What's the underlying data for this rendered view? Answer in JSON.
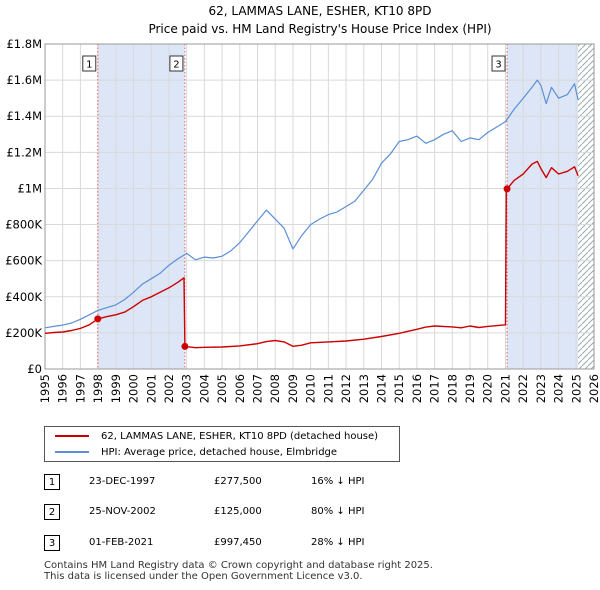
{
  "chart_data": {
    "type": "line",
    "title": "62, LAMMAS LANE, ESHER, KT10 8PD",
    "subtitle": "Price paid vs. HM Land Registry's House Price Index (HPI)",
    "xlim": [
      1995,
      2026
    ],
    "ylim": [
      0,
      1800000
    ],
    "x_ticks": [
      1995,
      1996,
      1997,
      1998,
      1999,
      2000,
      2001,
      2002,
      2003,
      2004,
      2005,
      2006,
      2007,
      2008,
      2009,
      2010,
      2011,
      2012,
      2013,
      2014,
      2015,
      2016,
      2017,
      2018,
      2019,
      2020,
      2021,
      2022,
      2023,
      2024,
      2025,
      2026
    ],
    "y_ticks": [
      {
        "value": 0,
        "label": "£0"
      },
      {
        "value": 200000,
        "label": "£200K"
      },
      {
        "value": 400000,
        "label": "£400K"
      },
      {
        "value": 600000,
        "label": "£600K"
      },
      {
        "value": 800000,
        "label": "£800K"
      },
      {
        "value": 1000000,
        "label": "£1M"
      },
      {
        "value": 1200000,
        "label": "£1.2M"
      },
      {
        "value": 1400000,
        "label": "£1.4M"
      },
      {
        "value": 1600000,
        "label": "£1.6M"
      },
      {
        "value": 1800000,
        "label": "£1.8M"
      }
    ],
    "shaded_periods": [
      [
        1997.98,
        2002.9
      ],
      [
        2021.09,
        2025.1
      ]
    ],
    "hatched_from": 2025.1,
    "series": [
      {
        "name": "62, LAMMAS LANE, ESHER, KT10 8PD (detached house)",
        "color": "#cc0000",
        "points": [
          [
            1995.0,
            198000
          ],
          [
            1995.5,
            202000
          ],
          [
            1996.0,
            205000
          ],
          [
            1996.5,
            213000
          ],
          [
            1997.0,
            225000
          ],
          [
            1997.5,
            245000
          ],
          [
            1997.98,
            277500
          ],
          [
            1998.5,
            290000
          ],
          [
            1999.0,
            300000
          ],
          [
            1999.5,
            315000
          ],
          [
            2000.0,
            345000
          ],
          [
            2000.5,
            380000
          ],
          [
            2001.0,
            400000
          ],
          [
            2001.5,
            425000
          ],
          [
            2002.0,
            450000
          ],
          [
            2002.5,
            480000
          ],
          [
            2002.85,
            505000
          ],
          [
            2002.9,
            125000
          ],
          [
            2003.5,
            118000
          ],
          [
            2004.0,
            120000
          ],
          [
            2005.0,
            122000
          ],
          [
            2006.0,
            128000
          ],
          [
            2007.0,
            140000
          ],
          [
            2007.5,
            152000
          ],
          [
            2008.0,
            158000
          ],
          [
            2008.5,
            150000
          ],
          [
            2009.0,
            126000
          ],
          [
            2009.5,
            132000
          ],
          [
            2010.0,
            145000
          ],
          [
            2011.0,
            150000
          ],
          [
            2012.0,
            155000
          ],
          [
            2013.0,
            165000
          ],
          [
            2014.0,
            180000
          ],
          [
            2015.0,
            198000
          ],
          [
            2016.0,
            220000
          ],
          [
            2016.5,
            232000
          ],
          [
            2017.0,
            238000
          ],
          [
            2018.0,
            233000
          ],
          [
            2018.5,
            228000
          ],
          [
            2019.0,
            238000
          ],
          [
            2019.5,
            230000
          ],
          [
            2020.0,
            236000
          ],
          [
            2021.0,
            245000
          ],
          [
            2021.05,
            1000000
          ],
          [
            2021.09,
            997450
          ],
          [
            2021.5,
            1045000
          ],
          [
            2022.0,
            1080000
          ],
          [
            2022.5,
            1135000
          ],
          [
            2022.8,
            1150000
          ],
          [
            2023.0,
            1110000
          ],
          [
            2023.3,
            1060000
          ],
          [
            2023.6,
            1115000
          ],
          [
            2024.0,
            1080000
          ],
          [
            2024.5,
            1095000
          ],
          [
            2024.9,
            1120000
          ],
          [
            2025.1,
            1070000
          ]
        ]
      },
      {
        "name": "HPI: Average price, detached house, Elmbridge",
        "color": "#5b8fd6",
        "points": [
          [
            1995.0,
            228000
          ],
          [
            1995.5,
            236000
          ],
          [
            1996.0,
            243000
          ],
          [
            1996.5,
            255000
          ],
          [
            1997.0,
            275000
          ],
          [
            1997.5,
            300000
          ],
          [
            1998.0,
            325000
          ],
          [
            1998.5,
            340000
          ],
          [
            1999.0,
            355000
          ],
          [
            1999.5,
            385000
          ],
          [
            2000.0,
            425000
          ],
          [
            2000.5,
            470000
          ],
          [
            2001.0,
            500000
          ],
          [
            2001.5,
            530000
          ],
          [
            2002.0,
            575000
          ],
          [
            2002.5,
            610000
          ],
          [
            2003.0,
            640000
          ],
          [
            2003.5,
            605000
          ],
          [
            2004.0,
            620000
          ],
          [
            2004.5,
            615000
          ],
          [
            2005.0,
            625000
          ],
          [
            2005.5,
            655000
          ],
          [
            2006.0,
            700000
          ],
          [
            2006.5,
            760000
          ],
          [
            2007.0,
            820000
          ],
          [
            2007.5,
            880000
          ],
          [
            2008.0,
            830000
          ],
          [
            2008.5,
            780000
          ],
          [
            2009.0,
            665000
          ],
          [
            2009.5,
            740000
          ],
          [
            2010.0,
            800000
          ],
          [
            2010.5,
            830000
          ],
          [
            2011.0,
            855000
          ],
          [
            2011.5,
            870000
          ],
          [
            2012.0,
            900000
          ],
          [
            2012.5,
            930000
          ],
          [
            2013.0,
            990000
          ],
          [
            2013.5,
            1050000
          ],
          [
            2014.0,
            1140000
          ],
          [
            2014.5,
            1190000
          ],
          [
            2015.0,
            1260000
          ],
          [
            2015.5,
            1270000
          ],
          [
            2016.0,
            1290000
          ],
          [
            2016.5,
            1250000
          ],
          [
            2017.0,
            1270000
          ],
          [
            2017.5,
            1300000
          ],
          [
            2018.0,
            1320000
          ],
          [
            2018.5,
            1260000
          ],
          [
            2019.0,
            1280000
          ],
          [
            2019.5,
            1270000
          ],
          [
            2020.0,
            1310000
          ],
          [
            2020.5,
            1340000
          ],
          [
            2021.0,
            1370000
          ],
          [
            2021.5,
            1440000
          ],
          [
            2022.0,
            1500000
          ],
          [
            2022.5,
            1560000
          ],
          [
            2022.8,
            1600000
          ],
          [
            2023.0,
            1570000
          ],
          [
            2023.3,
            1470000
          ],
          [
            2023.6,
            1560000
          ],
          [
            2024.0,
            1500000
          ],
          [
            2024.5,
            1520000
          ],
          [
            2024.9,
            1580000
          ],
          [
            2025.1,
            1490000
          ]
        ]
      }
    ],
    "markers": [
      {
        "label": "1",
        "x": 1997.98,
        "value": 277500
      },
      {
        "label": "2",
        "x": 2002.9,
        "value": 125000
      },
      {
        "label": "3",
        "x": 2021.09,
        "value": 997450
      }
    ]
  },
  "legend": {
    "property": "62, LAMMAS LANE, ESHER, KT10 8PD (detached house)",
    "hpi": "HPI: Average price, detached house, Elmbridge"
  },
  "transactions": [
    {
      "num": "1",
      "date": "23-DEC-1997",
      "price": "£277,500",
      "hpi": "16% ↓ HPI"
    },
    {
      "num": "2",
      "date": "25-NOV-2002",
      "price": "£125,000",
      "hpi": "80% ↓ HPI"
    },
    {
      "num": "3",
      "date": "01-FEB-2021",
      "price": "£997,450",
      "hpi": "28% ↓ HPI"
    }
  ],
  "footer": {
    "line1": "Contains HM Land Registry data © Crown copyright and database right 2025.",
    "line2": "This data is licensed under the Open Government Licence v3.0."
  },
  "colors": {
    "property": "#cc0000",
    "hpi": "#5b8fd6",
    "shade": "#dde6f7",
    "marker_line": "#e06666"
  }
}
